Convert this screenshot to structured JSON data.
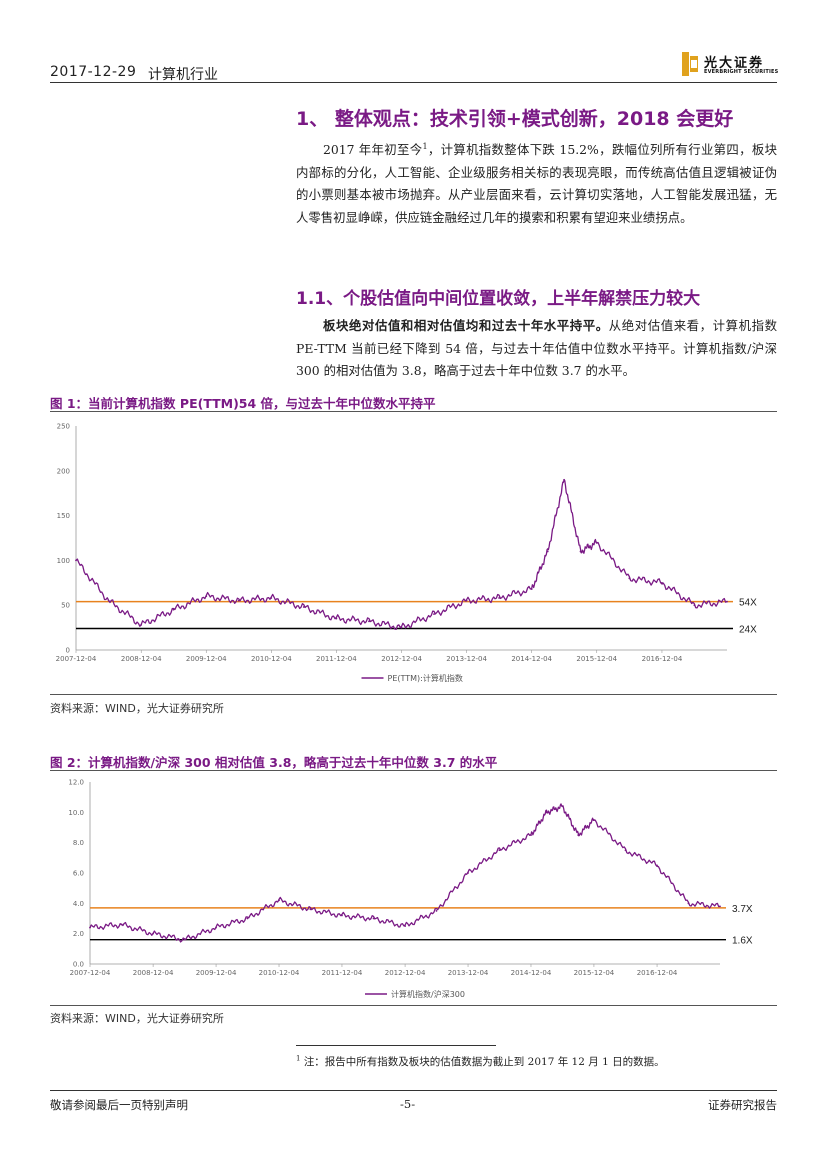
{
  "header": {
    "date": "2017-12-29",
    "industry": "计算机行业",
    "logo_cn": "光大证券",
    "logo_en": "EVERBRIGHT SECURITIES"
  },
  "section1": {
    "heading": "1、 整体观点：技术引领+模式创新，2018 会更好",
    "para_a": "2017 年年初至今",
    "para_sup": "1",
    "para_b": "，计算机指数整体下跌 15.2%，跌幅位列所有行业第四，板块内部标的分化，人工智能、企业级服务相关标的表现亮眼，而传统高估值且逻辑被证伪的小票则基本被市场抛弃。从产业层面来看，云计算切实落地，人工智能发展迅猛，无人零售初显峥嵘，供应链金融经过几年的摸索和积累有望迎来业绩拐点。"
  },
  "section11": {
    "heading": "1.1、个股估值向中间位置收敛，上半年解禁压力较大",
    "lead": "板块绝对估值和相对估值均和过去十年水平持平。",
    "body": "从绝对估值来看，计算机指数 PE-TTM 当前已经下降到 54 倍，与过去十年估值中位数水平持平。计算机指数/沪深 300 的相对估值为 3.8，略高于过去十年中位数 3.7 的水平。"
  },
  "figure1": {
    "title": "图 1：当前计算机指数 PE(TTM)54 倍，与过去十年中位数水平持平",
    "source": "资料来源：WIND，光大证券研究所"
  },
  "figure2": {
    "title": "图 2：计算机指数/沪深 300 相对估值 3.8，略高于过去十年中位数 3.7 的水平",
    "source": "资料来源：WIND，光大证券研究所"
  },
  "chart_data": [
    {
      "type": "line",
      "x": [
        "2007-12-04",
        "2008-06-04",
        "2008-12-04",
        "2009-06-04",
        "2009-12-04",
        "2010-06-04",
        "2010-12-04",
        "2011-06-04",
        "2011-12-04",
        "2012-06-04",
        "2012-12-04",
        "2013-06-04",
        "2013-12-04",
        "2014-06-04",
        "2014-12-04",
        "2015-03-04",
        "2015-06-04",
        "2015-09-04",
        "2015-12-04",
        "2016-06-04",
        "2016-12-04",
        "2017-06-04",
        "2017-12-04"
      ],
      "series": [
        {
          "name": "PE(TTM):计算机指数",
          "values": [
            100,
            55,
            28,
            45,
            60,
            55,
            58,
            48,
            35,
            32,
            25,
            40,
            55,
            58,
            68,
            110,
            190,
            110,
            120,
            80,
            75,
            50,
            54
          ]
        }
      ],
      "reference_lines": [
        {
          "label": "54X",
          "value": 54,
          "color": "#e8821e"
        },
        {
          "label": "24X",
          "value": 24,
          "color": "#000000"
        }
      ],
      "x_ticks": [
        "2007-12-04",
        "2008-12-04",
        "2009-12-04",
        "2010-12-04",
        "2011-12-04",
        "2012-12-04",
        "2013-12-04",
        "2014-12-04",
        "2015-12-04",
        "2016-12-04"
      ],
      "y_ticks": [
        "0",
        "50",
        "100",
        "150",
        "200",
        "250"
      ],
      "ylim": [
        0,
        250
      ],
      "legend": "PE(TTM):计算机指数",
      "legend_placement": "bottom",
      "line_color": "#7a1a85",
      "grid": false
    },
    {
      "type": "line",
      "x": [
        "2007-12-04",
        "2008-06-04",
        "2008-12-04",
        "2009-06-04",
        "2009-12-04",
        "2010-06-04",
        "2010-12-04",
        "2011-06-04",
        "2011-12-04",
        "2012-06-04",
        "2012-12-04",
        "2013-06-04",
        "2013-12-04",
        "2014-06-04",
        "2014-12-04",
        "2015-03-04",
        "2015-06-04",
        "2015-09-04",
        "2015-12-04",
        "2016-06-04",
        "2016-12-04",
        "2017-06-04",
        "2017-12-04"
      ],
      "series": [
        {
          "name": "计算机指数/沪深300",
          "values": [
            2.4,
            2.6,
            2.0,
            1.6,
            2.4,
            3.0,
            4.2,
            3.6,
            3.2,
            3.0,
            2.5,
            3.5,
            6.0,
            7.5,
            8.5,
            10.0,
            10.4,
            8.5,
            9.5,
            7.5,
            6.5,
            4.0,
            3.8
          ]
        }
      ],
      "reference_lines": [
        {
          "label": "3.7X",
          "value": 3.7,
          "color": "#e8821e"
        },
        {
          "label": "1.6X",
          "value": 1.6,
          "color": "#000000"
        }
      ],
      "x_ticks": [
        "2007-12-04",
        "2008-12-04",
        "2009-12-04",
        "2010-12-04",
        "2011-12-04",
        "2012-12-04",
        "2013-12-04",
        "2014-12-04",
        "2015-12-04",
        "2016-12-04"
      ],
      "y_ticks": [
        "0.0",
        "2.0",
        "4.0",
        "6.0",
        "8.0",
        "10.0",
        "12.0"
      ],
      "ylim": [
        0,
        12
      ],
      "legend": "计算机指数/沪深300",
      "legend_placement": "bottom",
      "line_color": "#7a1a85",
      "grid": false
    }
  ],
  "footnote": {
    "sup": "1",
    "text": "注：报告中所有指数及板块的估值数据为截止到 2017 年 12 月 1 日的数据。"
  },
  "footer": {
    "left": "敬请参阅最后一页特别声明",
    "center": "-5-",
    "right": "证券研究报告"
  }
}
